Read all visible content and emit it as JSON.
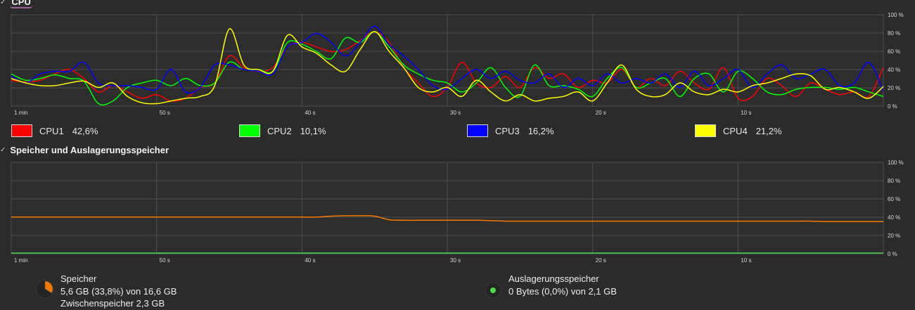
{
  "cpu": {
    "title": "CPU",
    "y_ticks": [
      "100 %",
      "80 %",
      "60 %",
      "40 %",
      "20 %",
      "0 %"
    ],
    "x_ticks": [
      "1 min",
      "50 s",
      "40 s",
      "30 s",
      "20 s",
      "10 s"
    ],
    "series": [
      {
        "name": "CPU1",
        "value": "42,6%",
        "color": "#ff0000",
        "values": [
          28,
          26,
          28,
          35,
          40,
          30,
          15,
          22,
          15,
          8,
          12,
          5,
          8,
          20,
          25,
          55,
          42,
          38,
          42,
          65,
          70,
          65,
          60,
          62,
          72,
          82,
          70,
          42,
          25,
          10,
          20,
          48,
          25,
          20,
          32,
          20,
          42,
          30,
          35,
          20,
          28,
          25,
          40,
          20,
          30,
          22,
          38,
          25,
          18,
          42,
          8,
          10,
          30,
          22,
          10,
          25,
          18,
          12,
          15,
          10,
          42
        ]
      },
      {
        "name": "CPU2",
        "value": "10,1%",
        "color": "#00ff00",
        "values": [
          35,
          28,
          30,
          34,
          30,
          27,
          2,
          5,
          20,
          25,
          28,
          22,
          30,
          22,
          25,
          48,
          40,
          40,
          38,
          70,
          68,
          60,
          52,
          75,
          70,
          82,
          65,
          45,
          35,
          28,
          25,
          15,
          25,
          42,
          20,
          10,
          45,
          22,
          22,
          18,
          10,
          30,
          42,
          20,
          25,
          30,
          10,
          30,
          35,
          15,
          38,
          30,
          15,
          12,
          18,
          20,
          20,
          18,
          20,
          15,
          10
        ]
      },
      {
        "name": "CPU3",
        "value": "16,2%",
        "color": "#0000ff",
        "values": [
          33,
          25,
          35,
          38,
          38,
          48,
          25,
          22,
          22,
          20,
          18,
          40,
          15,
          20,
          45,
          45,
          40,
          38,
          35,
          65,
          70,
          80,
          70,
          55,
          70,
          88,
          68,
          55,
          40,
          22,
          18,
          30,
          40,
          30,
          38,
          28,
          25,
          35,
          20,
          30,
          22,
          35,
          25,
          30,
          25,
          35,
          20,
          38,
          22,
          30,
          40,
          20,
          35,
          45,
          30,
          35,
          40,
          22,
          25,
          48,
          16
        ]
      },
      {
        "name": "CPU4",
        "value": "21,2%",
        "color": "#ffff00",
        "values": [
          30,
          25,
          22,
          22,
          25,
          27,
          20,
          25,
          10,
          3,
          2,
          5,
          8,
          10,
          22,
          85,
          45,
          40,
          38,
          78,
          65,
          58,
          45,
          38,
          62,
          82,
          60,
          42,
          20,
          15,
          20,
          10,
          28,
          15,
          5,
          12,
          5,
          8,
          10,
          15,
          5,
          25,
          45,
          18,
          10,
          12,
          25,
          15,
          12,
          18,
          15,
          22,
          25,
          30,
          35,
          33,
          18,
          20,
          15,
          8,
          21
        ]
      }
    ]
  },
  "memory": {
    "title": "Speicher und Auslagerungsspeicher",
    "y_ticks": [
      "100 %",
      "80 %",
      "60 %",
      "40 %",
      "20 %",
      "0 %"
    ],
    "x_ticks": [
      "1 min",
      "50 s",
      "40 s",
      "30 s",
      "20 s",
      "10 s"
    ],
    "ram": {
      "label": "Speicher",
      "usage": "5,6 GB (33,8%) von 16,6 GB",
      "cache": "Zwischenspeicher 2,3 GB",
      "color": "#f57900",
      "fraction": 0.338,
      "values": [
        40,
        40,
        40,
        40,
        40,
        40,
        40,
        40,
        40,
        40,
        40,
        40,
        40,
        40,
        40,
        40,
        40,
        40,
        40,
        40,
        40,
        40,
        41,
        41.5,
        41.5,
        41,
        37,
        36.5,
        36.5,
        36.5,
        36.5,
        36.5,
        36.5,
        36,
        35.5,
        35.5,
        35.5,
        35.5,
        35.5,
        35.5,
        35.5,
        35.5,
        35.5,
        35.5,
        35.5,
        35.5,
        35.5,
        35.5,
        35.5,
        35.5,
        35.5,
        35.5,
        35.5,
        35.5,
        35.5,
        35.5,
        35,
        35,
        35,
        35,
        35
      ]
    },
    "swap": {
      "label": "Auslagerungsspeicher",
      "usage": "0 Bytes (0,0%) von 2,1 GB",
      "color": "#4cdc4c",
      "fraction": 0.0
    }
  }
}
